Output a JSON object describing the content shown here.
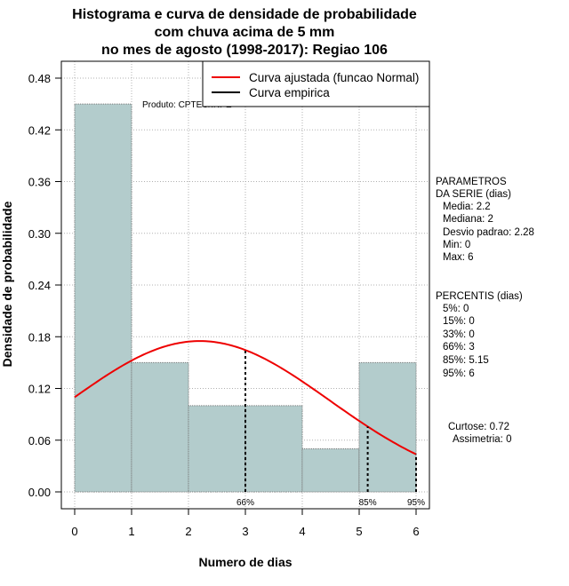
{
  "chart_data": {
    "type": "bar",
    "title_lines": [
      "Histograma e curva de densidade de probabilidade",
      "com chuva acima de 5 mm",
      "no mes de agosto (1998-2017): Regiao 106"
    ],
    "xlabel": "Numero de dias",
    "ylabel": "Densidade de probabilidade",
    "xlim": [
      0,
      6
    ],
    "ylim": [
      0,
      0.48
    ],
    "x_ticks": [
      "0",
      "1",
      "2",
      "3",
      "4",
      "5",
      "6"
    ],
    "y_ticks": [
      "0.00",
      "0.06",
      "0.12",
      "0.18",
      "0.24",
      "0.30",
      "0.36",
      "0.42",
      "0.48"
    ],
    "grid": true,
    "bins": [
      {
        "from": 0,
        "to": 1,
        "density": 0.45
      },
      {
        "from": 1,
        "to": 2,
        "density": 0.15
      },
      {
        "from": 2,
        "to": 3,
        "density": 0.1
      },
      {
        "from": 3,
        "to": 4,
        "density": 0.1
      },
      {
        "from": 4,
        "to": 5,
        "density": 0.05
      },
      {
        "from": 5,
        "to": 6,
        "density": 0.15
      }
    ],
    "fitted_curve": {
      "name": "Curva ajustada (funcao Normal)",
      "distribution": "normal",
      "mean": 2.2,
      "sd": 2.28,
      "color": "#ee0000"
    },
    "empirical_curve": {
      "name": "Curva empirica",
      "color": "#000000"
    },
    "percentile_markers": [
      {
        "label": "66%",
        "x": 3
      },
      {
        "label": "85%",
        "x": 5.15
      },
      {
        "label": "95%",
        "x": 6
      }
    ],
    "legend_position": "top-right",
    "annotation": "Produto: CPTEC/INPE",
    "bar_color": "#b3cccc"
  },
  "side_panel": {
    "params_title_1": "PARAMETROS",
    "params_title_2": "DA SERIE (dias)",
    "params": [
      "Media: 2.2",
      "Mediana: 2",
      "Desvio padrao: 2.28",
      "Min: 0",
      "Max: 6"
    ],
    "percentis_title": "PERCENTIS (dias)",
    "percentis": [
      "5%: 0",
      "15%: 0",
      "33%: 0",
      "66%: 3",
      "85%: 5.15",
      "95%: 6"
    ],
    "curtose": "Curtose: 0.72",
    "assimetria": "Assimetria: 0"
  }
}
